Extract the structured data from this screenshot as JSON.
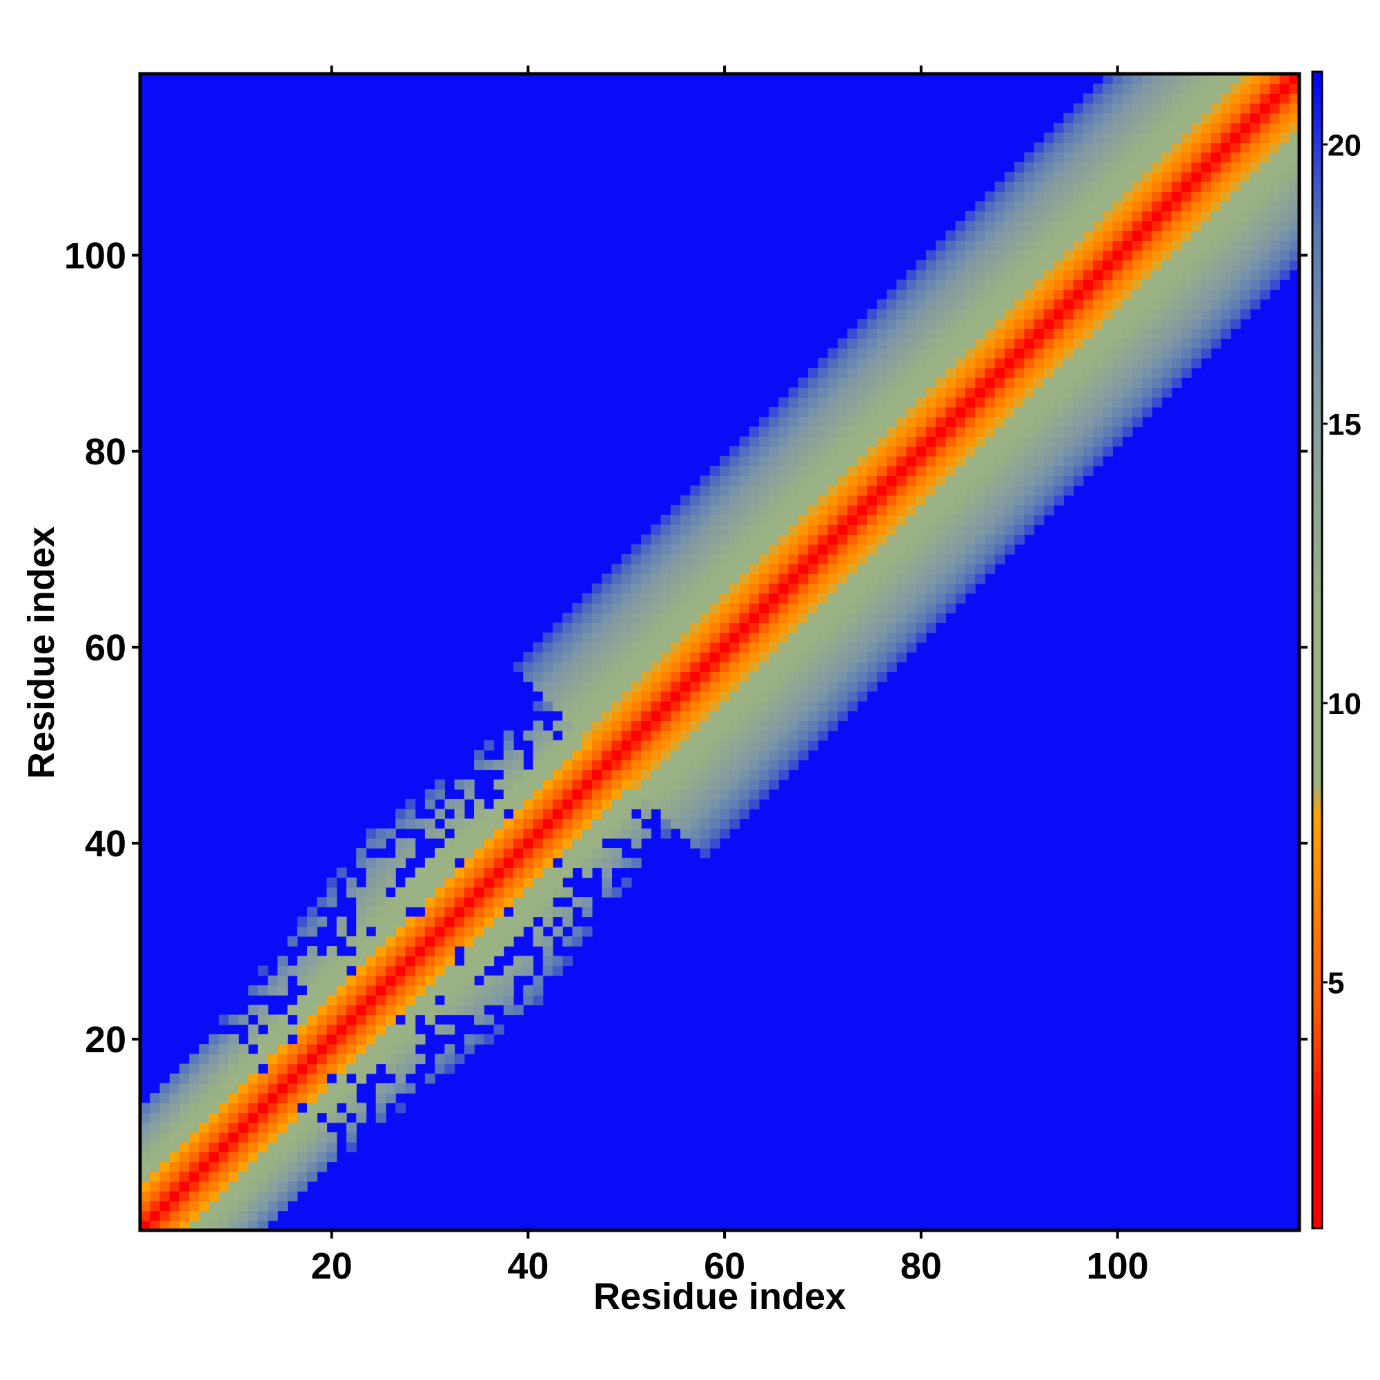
{
  "chart_data": {
    "type": "heatmap",
    "title": "",
    "xlabel": "Residue index",
    "ylabel": "Residue index",
    "n_residues": 118,
    "xlim": [
      1,
      118
    ],
    "ylim": [
      1,
      118
    ],
    "x_ticks": [
      20,
      40,
      60,
      80,
      100
    ],
    "y_ticks": [
      20,
      40,
      60,
      80,
      100
    ],
    "x_tick_labels": [
      "20",
      "40",
      "60",
      "80",
      "100"
    ],
    "y_tick_labels": [
      "20",
      "40",
      "60",
      "80",
      "100"
    ],
    "value_range": [
      0,
      21
    ],
    "colorbar": {
      "ticks": [
        5,
        10,
        15,
        20
      ],
      "labels": [
        "5",
        "10",
        "15",
        "20"
      ],
      "min": 0.6,
      "max": 21.3,
      "stops": [
        {
          "value": 0.6,
          "color": "#ff0000"
        },
        {
          "value": 2.5,
          "color": "#ff0000"
        },
        {
          "value": 4.5,
          "color": "#ff5a00"
        },
        {
          "value": 8.0,
          "color": "#ffa200"
        },
        {
          "value": 8.6,
          "color": "#9bb284"
        },
        {
          "value": 11.5,
          "color": "#9bb284"
        },
        {
          "value": 16.0,
          "color": "#8098a6"
        },
        {
          "value": 18.5,
          "color": "#5878b8"
        },
        {
          "value": 21.3,
          "color": "#0000ff"
        }
      ]
    },
    "description_of_pattern": "Symmetric residue distance map: low distances along diagonal, high distances elsewhere",
    "matrix_model": {
      "diagonal_slope_per_residue": 0.17,
      "background_value": 21,
      "diffuse_region_residues": [
        15,
        48
      ],
      "broadened_region_peak_residue": 32
    }
  }
}
